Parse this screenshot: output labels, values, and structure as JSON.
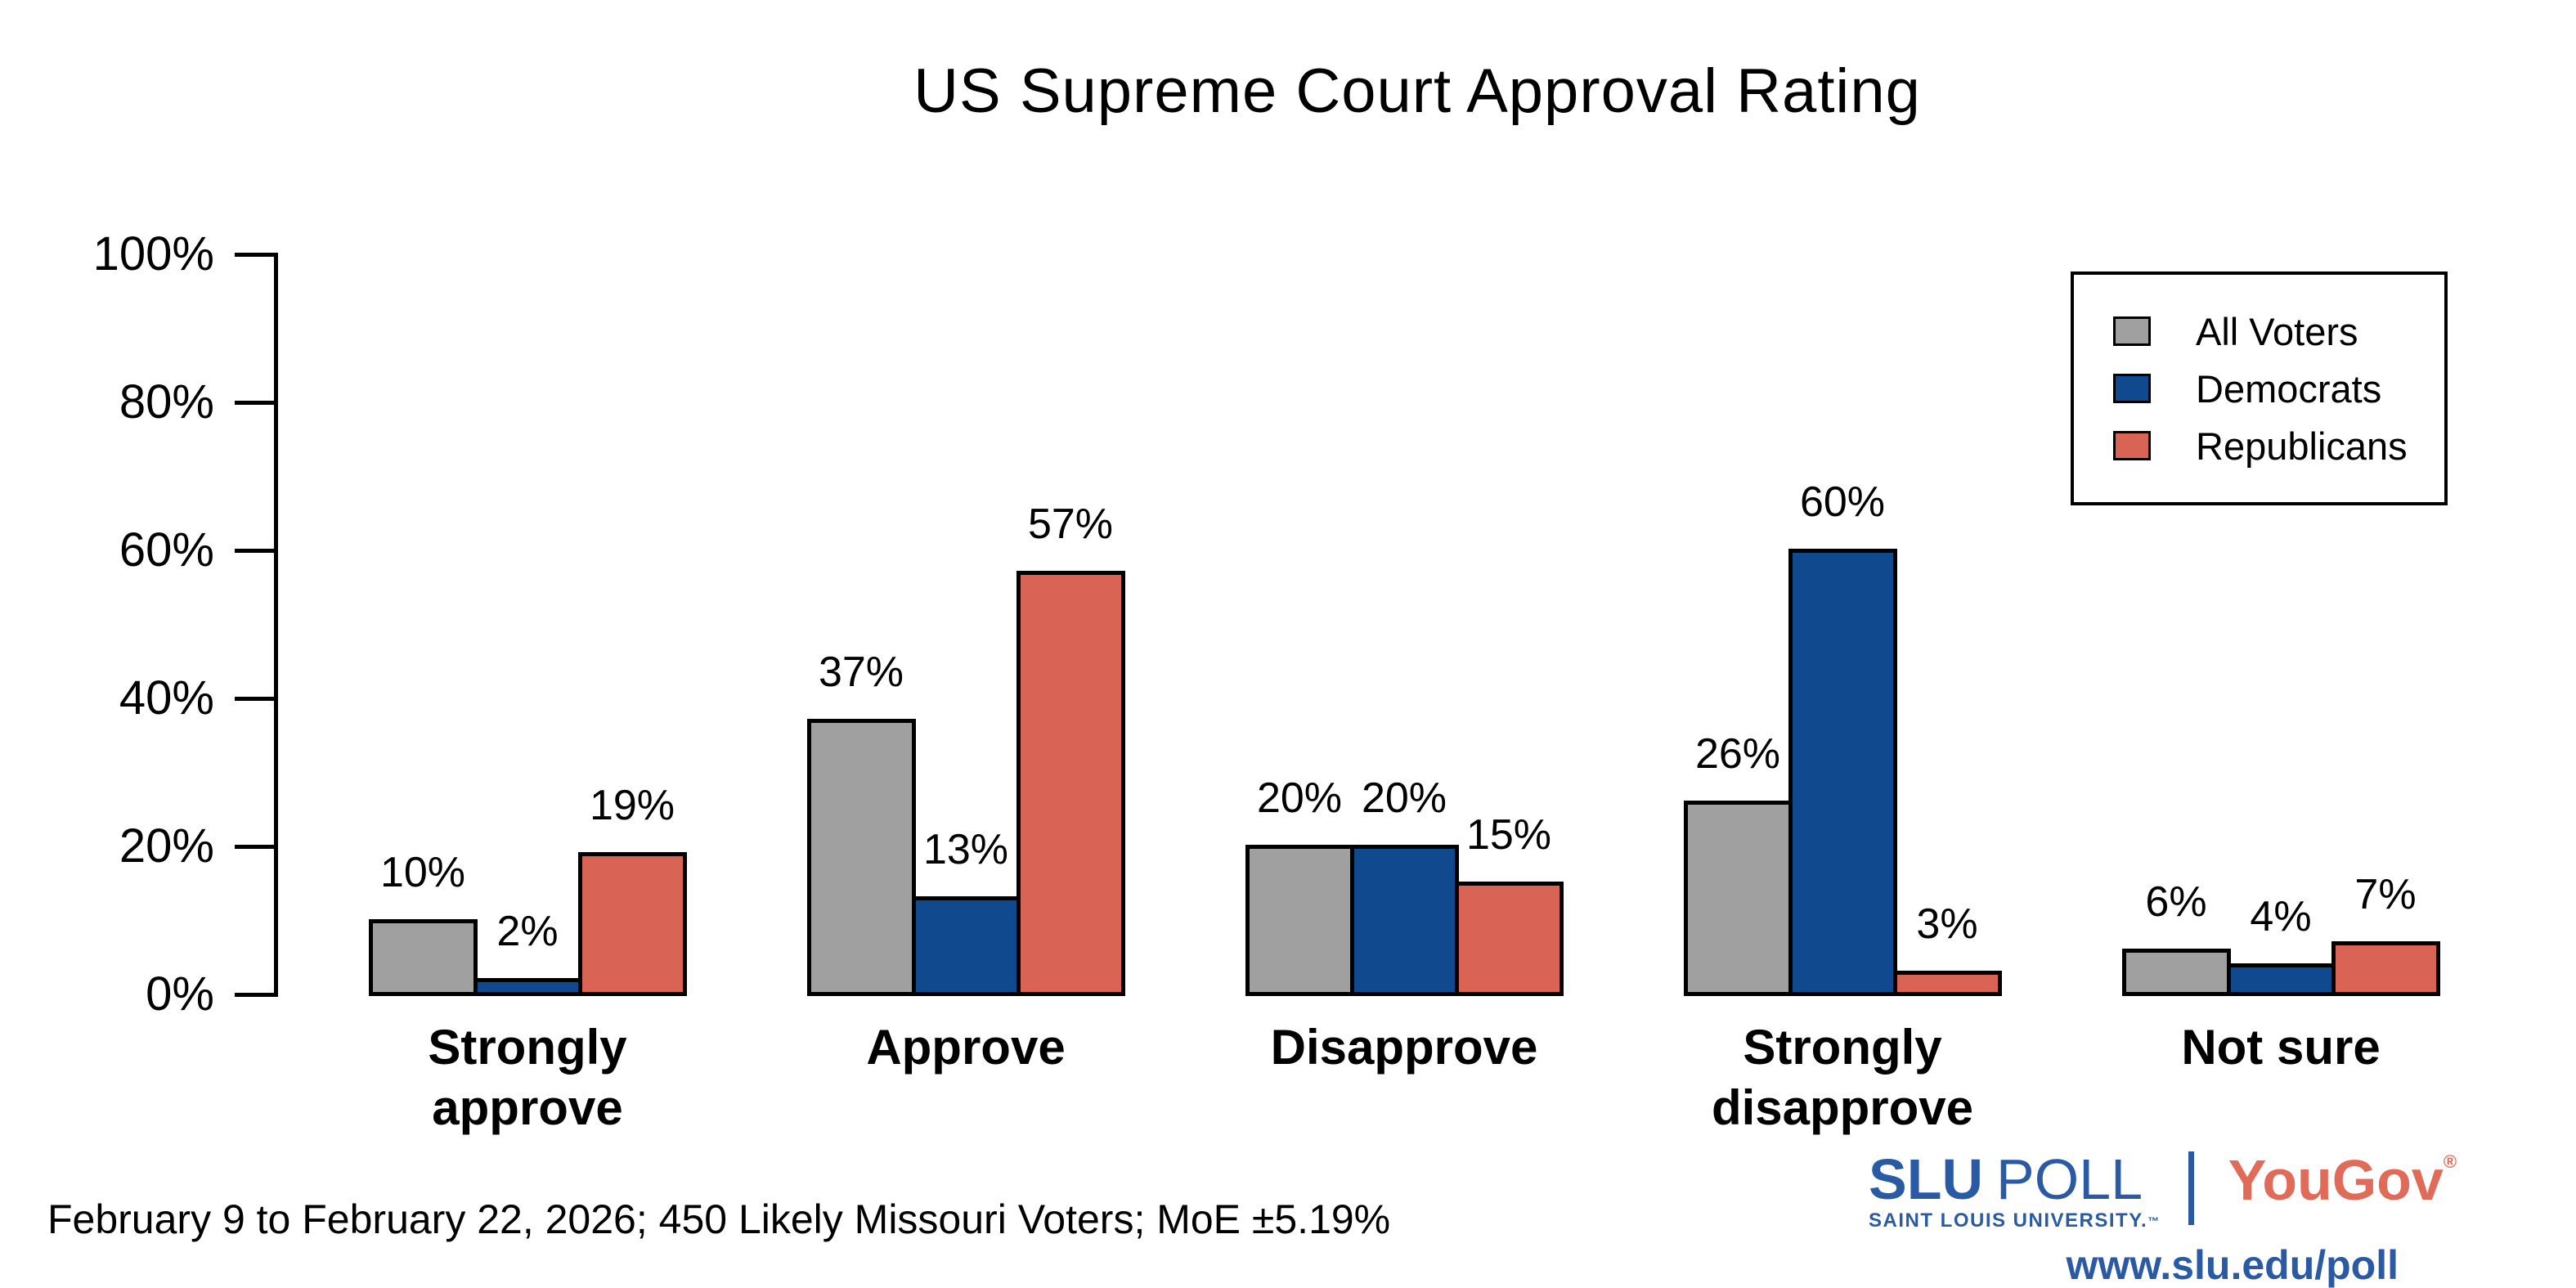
{
  "title": "US Supreme Court Approval Rating",
  "footnote": "February 9 to February 22, 2026; 450 Likely Missouri Voters; MoE ±5.19%",
  "chart_data": {
    "type": "bar",
    "title": "US Supreme Court Approval Rating",
    "categories": [
      "Strongly approve",
      "Approve",
      "Disapprove",
      "Strongly disapprove",
      "Not sure"
    ],
    "series": [
      {
        "name": "All Voters",
        "color": "#a0a0a0",
        "values": [
          10,
          37,
          20,
          26,
          6
        ]
      },
      {
        "name": "Democrats",
        "color": "#11498f",
        "values": [
          2,
          13,
          20,
          60,
          4
        ]
      },
      {
        "name": "Republicans",
        "color": "#d96456",
        "values": [
          19,
          57,
          15,
          3,
          7
        ]
      }
    ],
    "value_labels": [
      [
        "10%",
        "2%",
        "19%"
      ],
      [
        "37%",
        "13%",
        "57%"
      ],
      [
        "20%",
        "20%",
        "15%"
      ],
      [
        "26%",
        "60%",
        "3%"
      ],
      [
        "6%",
        "4%",
        "7%"
      ]
    ],
    "xlabel": "",
    "ylabel": "",
    "ylim": [
      0,
      100
    ],
    "yticks": [
      {
        "value": 0,
        "label": "0%"
      },
      {
        "value": 20,
        "label": "20%"
      },
      {
        "value": 40,
        "label": "40%"
      },
      {
        "value": 60,
        "label": "60%"
      },
      {
        "value": 80,
        "label": "80%"
      },
      {
        "value": 100,
        "label": "100%"
      }
    ],
    "grid": false,
    "legend_position": "top-right",
    "bar_outline_color": "#000000"
  },
  "branding": {
    "slu_name": "SLU",
    "slu_poll": "POLL",
    "slu_subtitle": "SAINT LOUIS UNIVERSITY.",
    "slu_tm": "™",
    "yougov_name": "YouGov",
    "yougov_reg": "®",
    "url": "www.slu.edu/poll",
    "slu_blue": "#2b5aa5",
    "yougov_red": "#e06b59"
  }
}
